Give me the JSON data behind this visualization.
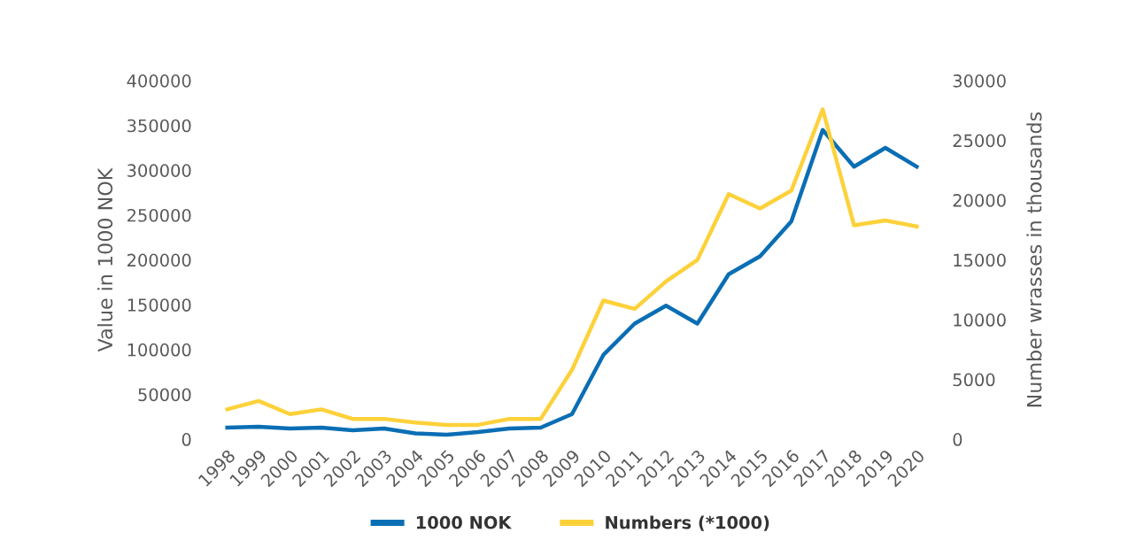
{
  "chart_data": {
    "type": "line",
    "ylabel": "Value in 1000 NOK",
    "y2label": "Number wrasses in thousands",
    "categories": [
      "1998",
      "1999",
      "2000",
      "2001",
      "2002",
      "2003",
      "2004",
      "2005",
      "2006",
      "2007",
      "2008",
      "2009",
      "2010",
      "2011",
      "2012",
      "2013",
      "2014",
      "2015",
      "2016",
      "2017",
      "2018",
      "2019",
      "2020"
    ],
    "series": [
      {
        "name": "1000 NOK",
        "color": "#0a6eb4",
        "values": [
          13000,
          14000,
          12000,
          13000,
          10000,
          12000,
          6500,
          5000,
          8000,
          12000,
          13000,
          28000,
          94000,
          129000,
          149000,
          129000,
          184000,
          204000,
          243000,
          345000,
          304000,
          325000,
          304000
        ]
      },
      {
        "name": "Numbers (*1000)",
        "color": "#fdd13a",
        "axis": "y2",
        "values": [
          2500,
          3200,
          2100,
          2500,
          1700,
          1700,
          1400,
          1200,
          1200,
          1700,
          1700,
          5800,
          11600,
          10900,
          13200,
          15000,
          20500,
          19300,
          20800,
          27600,
          17900,
          18300,
          17800
        ]
      }
    ],
    "ylim": [
      0,
      400000
    ],
    "yticks": [
      0,
      50000,
      100000,
      150000,
      200000,
      250000,
      300000,
      350000,
      400000
    ],
    "y2lim": [
      0,
      30000
    ],
    "y2ticks": [
      0,
      5000,
      10000,
      15000,
      20000,
      25000,
      30000
    ],
    "legend": "bottom",
    "grid": false,
    "marker": "none",
    "line_style": "solid"
  }
}
